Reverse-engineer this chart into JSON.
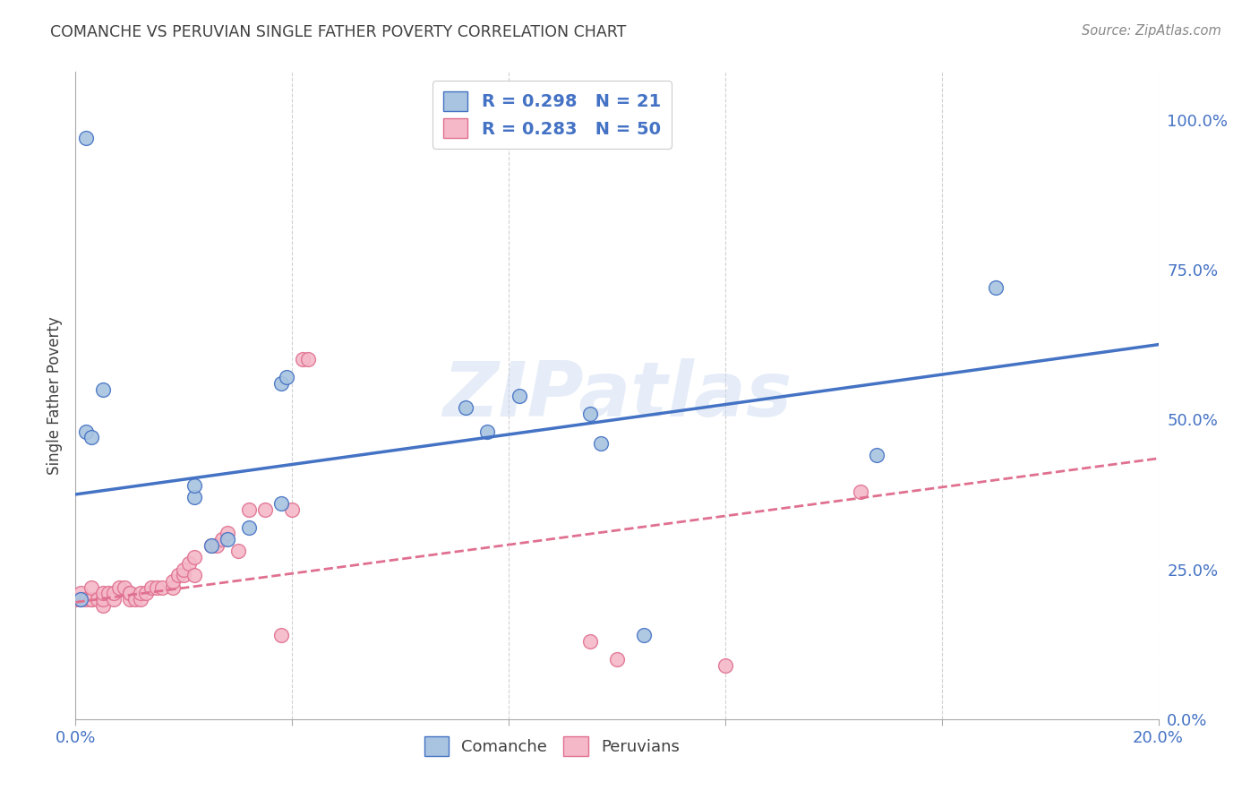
{
  "title": "COMANCHE VS PERUVIAN SINGLE FATHER POVERTY CORRELATION CHART",
  "source": "Source: ZipAtlas.com",
  "ylabel": "Single Father Poverty",
  "watermark": "ZIPatlas",
  "comanche_R": 0.298,
  "comanche_N": 21,
  "peruvian_R": 0.283,
  "peruvian_N": 50,
  "comanche_color": "#a8c4e0",
  "peruvian_color": "#f4b8c8",
  "comanche_line_color": "#4472c4",
  "peruvian_line_color": "#e07090",
  "legend_text_color": "#4472c4",
  "title_color": "#404040",
  "background_color": "#ffffff",
  "grid_color": "#cccccc",
  "xlim": [
    0.0,
    0.2
  ],
  "ylim": [
    0.0,
    1.08
  ],
  "x_ticks": [
    0.0,
    0.04,
    0.08,
    0.12,
    0.16,
    0.2
  ],
  "x_tick_labels": [
    "0.0%",
    "",
    "",
    "",
    "",
    "20.0%"
  ],
  "y_ticks_right": [
    0.0,
    0.25,
    0.5,
    0.75,
    1.0
  ],
  "y_tick_labels_right": [
    "0.0%",
    "25.0%",
    "50.0%",
    "75.0%",
    "100.0%"
  ],
  "comanche_x": [
    0.001,
    0.002,
    0.002,
    0.003,
    0.005,
    0.022,
    0.022,
    0.025,
    0.028,
    0.032,
    0.038,
    0.038,
    0.039,
    0.072,
    0.076,
    0.082,
    0.095,
    0.097,
    0.105,
    0.148,
    0.17
  ],
  "comanche_y": [
    0.2,
    0.97,
    0.48,
    0.47,
    0.55,
    0.37,
    0.39,
    0.29,
    0.3,
    0.32,
    0.36,
    0.56,
    0.57,
    0.52,
    0.48,
    0.54,
    0.51,
    0.46,
    0.14,
    0.44,
    0.72
  ],
  "peruvian_x": [
    0.0,
    0.001,
    0.001,
    0.001,
    0.002,
    0.003,
    0.003,
    0.003,
    0.004,
    0.005,
    0.005,
    0.005,
    0.006,
    0.007,
    0.007,
    0.008,
    0.009,
    0.01,
    0.01,
    0.01,
    0.011,
    0.012,
    0.012,
    0.013,
    0.014,
    0.015,
    0.016,
    0.018,
    0.018,
    0.019,
    0.02,
    0.02,
    0.021,
    0.022,
    0.022,
    0.025,
    0.026,
    0.027,
    0.028,
    0.03,
    0.032,
    0.035,
    0.038,
    0.04,
    0.042,
    0.043,
    0.095,
    0.1,
    0.12,
    0.145
  ],
  "peruvian_y": [
    0.2,
    0.2,
    0.2,
    0.21,
    0.2,
    0.2,
    0.2,
    0.22,
    0.2,
    0.19,
    0.2,
    0.21,
    0.21,
    0.2,
    0.21,
    0.22,
    0.22,
    0.2,
    0.21,
    0.21,
    0.2,
    0.2,
    0.21,
    0.21,
    0.22,
    0.22,
    0.22,
    0.22,
    0.23,
    0.24,
    0.24,
    0.25,
    0.26,
    0.24,
    0.27,
    0.29,
    0.29,
    0.3,
    0.31,
    0.28,
    0.35,
    0.35,
    0.14,
    0.35,
    0.6,
    0.6,
    0.13,
    0.1,
    0.09,
    0.38
  ],
  "comanche_line_x": [
    0.0,
    0.2
  ],
  "comanche_line_y": [
    0.375,
    0.625
  ],
  "peruvian_line_x": [
    0.0,
    0.2
  ],
  "peruvian_line_y": [
    0.195,
    0.435
  ]
}
